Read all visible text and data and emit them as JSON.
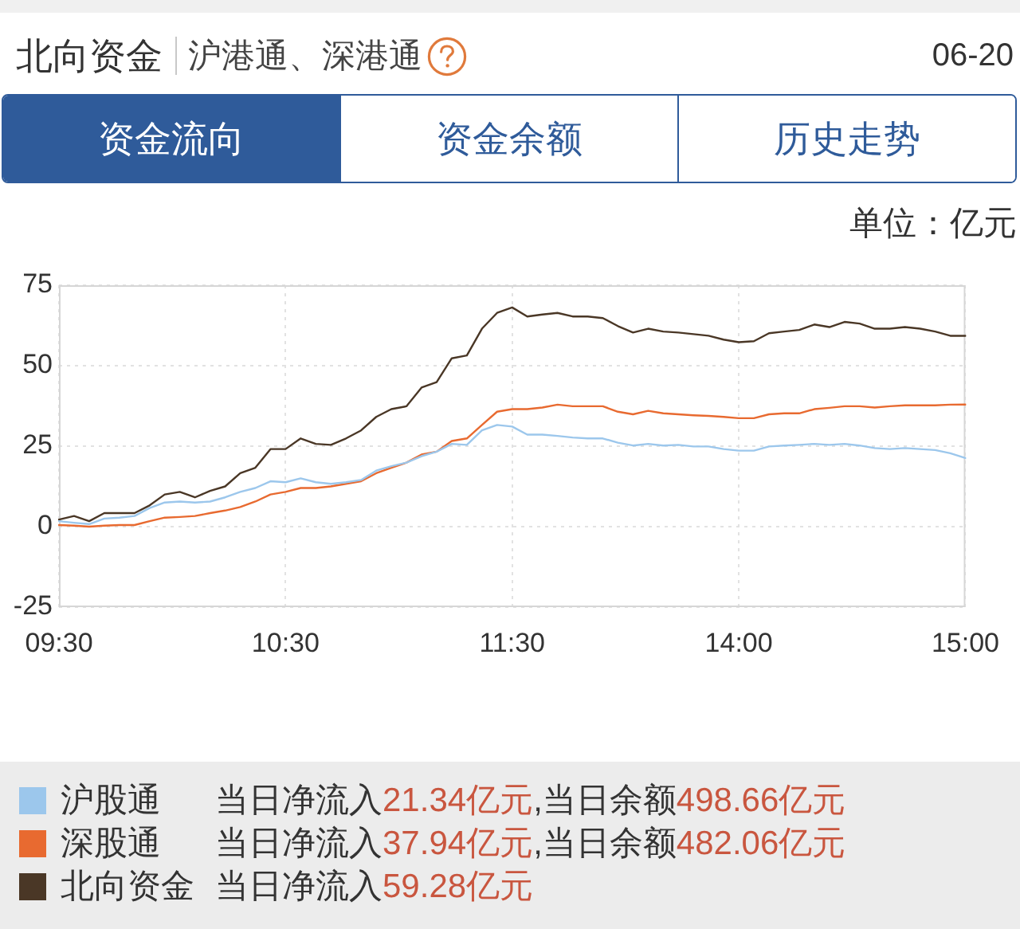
{
  "chart_data": {
    "type": "line",
    "title": "北向资金",
    "subtitle": "沪港通、深港通",
    "ylabel": "单位：亿元",
    "annotations": [
      "06-20",
      "资金流向",
      "资金余额",
      "历史走势",
      "当日净流入21.34亿元,当日余额498.66亿元",
      "当日净流入37.94亿元,当日余额482.06亿元",
      "当日净流入59.28亿元"
    ],
    "categories": [
      "09:30",
      null,
      null,
      null,
      null,
      null,
      null,
      null,
      null,
      null,
      null,
      null,
      null,
      null,
      null,
      "10:30",
      null,
      null,
      null,
      null,
      null,
      null,
      null,
      null,
      null,
      null,
      null,
      null,
      null,
      null,
      "11:30",
      null,
      null,
      null,
      null,
      null,
      null,
      null,
      null,
      null,
      null,
      null,
      null,
      null,
      null,
      "14:00",
      null,
      null,
      null,
      null,
      null,
      null,
      null,
      null,
      null,
      null,
      null,
      null,
      null,
      null,
      "15:00"
    ],
    "ylim": [
      -25,
      75
    ],
    "yticks": [
      -25,
      0,
      25,
      50,
      75
    ],
    "grid": true,
    "legend": "bottom",
    "series": [
      {
        "name": "沪股通",
        "color": "#9cc7ec",
        "values": [
          1.7,
          1.2,
          0.8,
          2.5,
          2.8,
          3.3,
          5.8,
          7.5,
          7.8,
          7.5,
          7.8,
          9.1,
          10.8,
          12.0,
          14.1,
          13.8,
          15.0,
          13.8,
          13.3,
          13.8,
          14.5,
          17.4,
          18.8,
          19.9,
          21.9,
          23.3,
          25.7,
          25.4,
          29.9,
          31.6,
          31.1,
          28.6,
          28.6,
          28.2,
          27.7,
          27.4,
          27.4,
          26.1,
          25.2,
          25.7,
          25.2,
          25.4,
          24.9,
          24.9,
          24.1,
          23.6,
          23.6,
          24.9,
          25.2,
          25.4,
          25.7,
          25.4,
          25.7,
          25.2,
          24.4,
          24.1,
          24.4,
          24.1,
          23.8,
          22.8,
          21.34
        ]
      },
      {
        "name": "深股通",
        "color": "#e86a30",
        "values": [
          0.5,
          0.3,
          0,
          0.3,
          0.5,
          0.5,
          1.7,
          2.8,
          3.0,
          3.3,
          4.2,
          5.0,
          6.1,
          7.8,
          10.0,
          10.8,
          12.0,
          12.0,
          12.5,
          13.3,
          14.1,
          16.6,
          18.3,
          19.9,
          22.4,
          23.3,
          26.6,
          27.4,
          31.6,
          35.7,
          36.5,
          36.5,
          37.0,
          37.9,
          37.4,
          37.4,
          37.4,
          35.7,
          34.9,
          36.0,
          35.2,
          34.9,
          34.6,
          34.4,
          34.1,
          33.7,
          33.7,
          34.9,
          35.2,
          35.2,
          36.5,
          36.9,
          37.4,
          37.4,
          37.0,
          37.4,
          37.7,
          37.7,
          37.7,
          37.9,
          37.94
        ]
      },
      {
        "name": "北向资金",
        "color": "#4a3726",
        "values": [
          2.2,
          3.3,
          1.7,
          4.2,
          4.2,
          4.2,
          6.6,
          10.0,
          10.8,
          9.1,
          11.1,
          12.5,
          16.6,
          18.3,
          24.1,
          24.1,
          27.4,
          25.7,
          25.4,
          27.4,
          29.9,
          34.1,
          36.5,
          37.4,
          43.2,
          44.9,
          52.3,
          53.2,
          61.5,
          66.4,
          68.1,
          65.3,
          65.9,
          66.4,
          65.3,
          65.3,
          64.8,
          62.3,
          60.3,
          61.5,
          60.6,
          60.3,
          59.8,
          59.3,
          58.1,
          57.3,
          57.6,
          60.1,
          60.6,
          61.1,
          62.8,
          62.0,
          63.6,
          63.1,
          61.5,
          61.5,
          62.0,
          61.5,
          60.6,
          59.3,
          59.28
        ]
      }
    ]
  }
}
